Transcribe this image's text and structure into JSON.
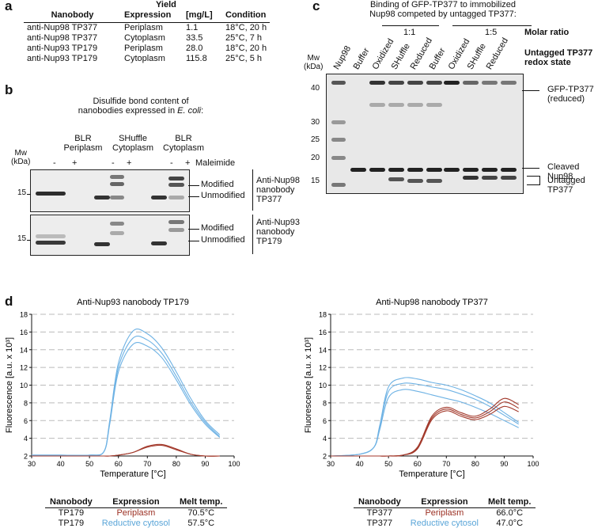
{
  "panel_a": {
    "label": "a",
    "yield_header": "Yield",
    "columns": [
      "Nanobody",
      "Expression",
      "[mg/L]",
      "Condition"
    ],
    "rows": [
      [
        "anti-Nup98 TP377",
        "Periplasm",
        "1.1",
        "18°C, 20 h"
      ],
      [
        "anti-Nup98 TP377",
        "Cytoplasm",
        "33.5",
        "25°C, 7 h"
      ],
      [
        "anti-Nup93 TP179",
        "Periplasm",
        "28.0",
        "18°C, 20 h"
      ],
      [
        "anti-Nup93 TP179",
        "Cytoplasm",
        "115.8",
        "25°C, 5 h"
      ]
    ]
  },
  "panel_b": {
    "label": "b",
    "title_line1": "Disulfide bond content of",
    "title_line2_prefix": "nanobodies expressed in ",
    "title_line2_italic": "E. coli",
    "title_line2_suffix": ":",
    "groups": [
      {
        "line1": "BLR",
        "line2": "Periplasm"
      },
      {
        "line1": "SHuffle",
        "line2": "Cytoplasm"
      },
      {
        "line1": "BLR",
        "line2": "Cytoplasm"
      }
    ],
    "mw_line1": "Mw",
    "mw_line2": "(kDa)",
    "lane_signs": [
      "-",
      "+",
      "-",
      "+",
      "-",
      "+"
    ],
    "maleimide": "Maleimide",
    "marker_15": "15",
    "modified": "Modified",
    "unmodified": "Unmodified",
    "target_top": [
      "Anti-Nup98",
      "nanobody",
      "TP377"
    ],
    "target_bottom": [
      "Anti-Nup93",
      "nanobody",
      "TP179"
    ]
  },
  "panel_c": {
    "label": "c",
    "title_line1": "Binding of GFP-TP377 to immobilized",
    "title_line2": "Nup98 competed by untagged TP377:",
    "ratio_1": "1:1",
    "ratio_2": "1:5",
    "molar_ratio": "Molar ratio",
    "redox_line1": "Untagged TP377",
    "redox_line2": "redox state",
    "mw_line1": "Mw",
    "mw_line2": "(kDa)",
    "lanes": [
      "Nup98",
      "Buffer",
      "Oxidized",
      "SHuffle",
      "Reduced",
      "Buffer",
      "Oxidized",
      "SHuffle",
      "Reduced"
    ],
    "markers": [
      "40",
      "30",
      "25",
      "20",
      "15"
    ],
    "right_labels": {
      "gfp_line1": "GFP-TP377",
      "gfp_line2": "(reduced)",
      "cleaved": "Cleaved Nup98",
      "untagged": "Untagged TP377"
    }
  },
  "panel_d": {
    "label": "d",
    "colors": {
      "periplasm": "#a33a2c",
      "cytosol": "#6eb2e4",
      "grid": "#bbbbbb"
    },
    "xlabel": "Temperature [°C]",
    "ylabel": "Fluorescence [a.u. x 10³]",
    "xlim": [
      30,
      100
    ],
    "ylim": [
      2,
      18
    ],
    "xticks": [
      "30",
      "40",
      "50",
      "60",
      "70",
      "80",
      "90",
      "100"
    ],
    "yticks": [
      "2",
      "4",
      "6",
      "8",
      "10",
      "12",
      "14",
      "16",
      "18"
    ],
    "charts": [
      {
        "title": "Anti-Nup93 nanobody TP179"
      },
      {
        "title": "Anti-Nup98 nanobody TP377"
      }
    ],
    "table_headers": [
      "Nanobody",
      "Expression",
      "Melt temp."
    ],
    "table_left": [
      [
        "TP179",
        "Periplasm",
        "70.5°C"
      ],
      [
        "TP179",
        "Reductive cytosol",
        "57.5°C"
      ]
    ],
    "table_right": [
      [
        "TP377",
        "Periplasm",
        "66.0°C"
      ],
      [
        "TP377",
        "Reductive cytosol",
        "47.0°C"
      ]
    ]
  },
  "chart_data": [
    {
      "type": "line",
      "title": "Anti-Nup93 nanobody TP179",
      "xlabel": "Temperature [°C]",
      "ylabel": "Fluorescence [a.u. x 10³]",
      "xlim": [
        30,
        100
      ],
      "ylim": [
        2,
        18
      ],
      "grid": "horizontal dashed",
      "x": [
        30,
        40,
        50,
        55,
        57,
        60,
        65,
        70,
        75,
        80,
        85,
        90,
        95
      ],
      "series": [
        {
          "values": [
            2.1,
            2.1,
            2.1,
            2.5,
            6.0,
            12.5,
            16.1,
            15.8,
            14.2,
            11.5,
            8.5,
            6.0,
            4.4
          ]
        },
        {
          "values": [
            2.1,
            2.1,
            2.1,
            2.5,
            5.8,
            12.0,
            15.3,
            15.1,
            13.6,
            11.0,
            8.1,
            5.8,
            4.2
          ]
        },
        {
          "values": [
            2.1,
            2.1,
            2.1,
            2.5,
            5.6,
            11.5,
            14.6,
            14.4,
            13.1,
            10.6,
            7.8,
            5.6,
            4.1
          ]
        },
        {
          "values": [
            2.0,
            2.0,
            2.0,
            2.0,
            2.0,
            2.1,
            2.4,
            3.0,
            3.2,
            2.7,
            2.2,
            2.0,
            2.0
          ]
        },
        {
          "values": [
            2.0,
            2.0,
            2.0,
            2.0,
            2.0,
            2.1,
            2.4,
            3.1,
            3.3,
            2.8,
            2.2,
            2.0,
            2.0
          ]
        }
      ]
    },
    {
      "type": "line",
      "title": "Anti-Nup98 nanobody TP377",
      "xlabel": "Temperature [°C]",
      "ylabel": "Fluorescence [a.u. x 10³]",
      "xlim": [
        30,
        100
      ],
      "ylim": [
        2,
        18
      ],
      "grid": "horizontal dashed",
      "x": [
        30,
        40,
        45,
        47,
        50,
        55,
        60,
        65,
        70,
        75,
        80,
        85,
        90,
        95
      ],
      "series": [
        {
          "values": [
            2.0,
            2.2,
            3.0,
            5.5,
            9.8,
            10.8,
            10.7,
            10.3,
            10.0,
            9.5,
            8.8,
            8.0,
            6.9,
            5.8
          ]
        },
        {
          "values": [
            2.0,
            2.2,
            3.0,
            5.3,
            9.3,
            10.2,
            10.1,
            9.8,
            9.5,
            9.0,
            8.4,
            7.6,
            6.6,
            5.6
          ]
        },
        {
          "values": [
            2.0,
            2.2,
            3.0,
            5.0,
            8.6,
            9.5,
            9.3,
            8.9,
            8.5,
            8.1,
            7.5,
            6.8,
            6.0,
            5.2
          ]
        },
        {
          "values": [
            2.0,
            2.0,
            2.0,
            2.0,
            2.0,
            2.1,
            3.0,
            6.5,
            7.5,
            6.9,
            6.5,
            7.3,
            8.5,
            7.8
          ]
        },
        {
          "values": [
            2.0,
            2.0,
            2.0,
            2.0,
            2.0,
            2.1,
            2.9,
            6.3,
            7.3,
            6.7,
            6.3,
            7.0,
            8.1,
            7.4
          ]
        },
        {
          "values": [
            2.0,
            2.0,
            2.0,
            2.0,
            2.0,
            2.1,
            2.8,
            6.1,
            7.1,
            6.5,
            6.1,
            6.7,
            7.6,
            7.0
          ]
        }
      ]
    }
  ]
}
